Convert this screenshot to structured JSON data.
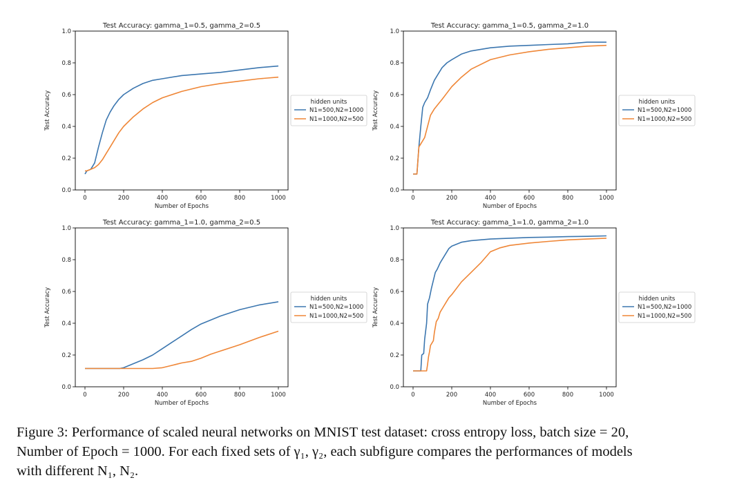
{
  "legend_title": "hidden units",
  "colors": {
    "series1": "#3b76af",
    "series2": "#ef8636"
  },
  "chart_data": [
    {
      "type": "line",
      "title": "Test Accuracy:  gamma_1=0.5, gamma_2=0.5",
      "xlabel": "Number of Epochs",
      "ylabel": "Test Accuracy",
      "xlim": [
        0,
        1000
      ],
      "ylim": [
        0,
        1.0
      ],
      "xticks": [
        0,
        200,
        400,
        600,
        800,
        1000
      ],
      "yticks": [
        "0.0",
        "0.2",
        "0.4",
        "0.6",
        "0.8",
        "1.0"
      ],
      "legend_position": "right",
      "series": [
        {
          "name": "N1=500,N2=1000",
          "x": [
            0,
            10,
            30,
            50,
            70,
            90,
            110,
            130,
            150,
            175,
            200,
            250,
            300,
            350,
            400,
            500,
            600,
            700,
            800,
            900,
            1000
          ],
          "y": [
            0.1,
            0.12,
            0.13,
            0.17,
            0.27,
            0.36,
            0.44,
            0.49,
            0.53,
            0.57,
            0.6,
            0.64,
            0.67,
            0.69,
            0.7,
            0.72,
            0.73,
            0.74,
            0.755,
            0.77,
            0.78
          ]
        },
        {
          "name": "N1=1000,N2=500",
          "x": [
            0,
            10,
            30,
            50,
            70,
            90,
            110,
            130,
            150,
            175,
            200,
            250,
            300,
            350,
            400,
            500,
            600,
            700,
            800,
            900,
            1000
          ],
          "y": [
            0.12,
            0.12,
            0.13,
            0.14,
            0.16,
            0.19,
            0.23,
            0.27,
            0.31,
            0.36,
            0.4,
            0.46,
            0.51,
            0.55,
            0.58,
            0.62,
            0.65,
            0.67,
            0.685,
            0.7,
            0.71
          ]
        }
      ]
    },
    {
      "type": "line",
      "title": "Test Accuracy:  gamma_1=0.5, gamma_2=1.0",
      "xlabel": "Number of Epochs",
      "ylabel": "Test Accuracy",
      "xlim": [
        0,
        1000
      ],
      "ylim": [
        0,
        1.0
      ],
      "xticks": [
        0,
        200,
        400,
        600,
        800,
        1000
      ],
      "yticks": [
        "0.0",
        "0.2",
        "0.4",
        "0.6",
        "0.8",
        "1.0"
      ],
      "legend_position": "right",
      "series": [
        {
          "name": "N1=500,N2=1000",
          "x": [
            0,
            20,
            30,
            40,
            50,
            60,
            75,
            90,
            110,
            130,
            150,
            175,
            200,
            250,
            300,
            400,
            500,
            600,
            700,
            800,
            900,
            1000
          ],
          "y": [
            0.1,
            0.1,
            0.27,
            0.4,
            0.52,
            0.55,
            0.58,
            0.63,
            0.69,
            0.73,
            0.77,
            0.8,
            0.82,
            0.855,
            0.875,
            0.895,
            0.905,
            0.91,
            0.915,
            0.92,
            0.93,
            0.93
          ]
        },
        {
          "name": "N1=1000,N2=500",
          "x": [
            0,
            20,
            30,
            40,
            50,
            60,
            75,
            90,
            110,
            130,
            150,
            175,
            200,
            250,
            300,
            400,
            500,
            600,
            700,
            800,
            900,
            1000
          ],
          "y": [
            0.1,
            0.1,
            0.27,
            0.29,
            0.31,
            0.33,
            0.4,
            0.47,
            0.51,
            0.54,
            0.57,
            0.61,
            0.65,
            0.71,
            0.76,
            0.82,
            0.85,
            0.87,
            0.885,
            0.895,
            0.905,
            0.91
          ]
        }
      ]
    },
    {
      "type": "line",
      "title": "Test Accuracy:  gamma_1=1.0, gamma_2=0.5",
      "xlabel": "Number of Epochs",
      "ylabel": "Test Accuracy",
      "xlim": [
        0,
        1000
      ],
      "ylim": [
        0,
        1.0
      ],
      "xticks": [
        0,
        200,
        400,
        600,
        800,
        1000
      ],
      "yticks": [
        "0.0",
        "0.2",
        "0.4",
        "0.6",
        "0.8",
        "1.0"
      ],
      "legend_position": "right",
      "series": [
        {
          "name": "N1=500,N2=1000",
          "x": [
            0,
            100,
            180,
            200,
            250,
            300,
            350,
            400,
            450,
            500,
            550,
            600,
            700,
            800,
            900,
            1000
          ],
          "y": [
            0.115,
            0.115,
            0.115,
            0.12,
            0.145,
            0.17,
            0.2,
            0.24,
            0.28,
            0.32,
            0.36,
            0.395,
            0.445,
            0.485,
            0.515,
            0.535
          ]
        },
        {
          "name": "N1=1000,N2=500",
          "x": [
            0,
            100,
            200,
            300,
            350,
            400,
            450,
            500,
            550,
            600,
            650,
            700,
            800,
            900,
            1000
          ],
          "y": [
            0.115,
            0.115,
            0.115,
            0.115,
            0.115,
            0.12,
            0.135,
            0.15,
            0.16,
            0.18,
            0.205,
            0.225,
            0.265,
            0.31,
            0.35
          ]
        }
      ]
    },
    {
      "type": "line",
      "title": "Test Accuracy:  gamma_1=1.0, gamma_2=1.0",
      "xlabel": "Number of Epochs",
      "ylabel": "Test Accuracy",
      "xlim": [
        0,
        1000
      ],
      "ylim": [
        0,
        1.0
      ],
      "xticks": [
        0,
        200,
        400,
        600,
        800,
        1000
      ],
      "yticks": [
        "0.0",
        "0.2",
        "0.4",
        "0.6",
        "0.8",
        "1.0"
      ],
      "legend_position": "right",
      "series": [
        {
          "name": "N1=500,N2=1000",
          "x": [
            0,
            40,
            45,
            55,
            60,
            65,
            70,
            75,
            85,
            95,
            105,
            115,
            125,
            140,
            155,
            170,
            185,
            200,
            250,
            300,
            400,
            500,
            600,
            700,
            800,
            900,
            1000
          ],
          "y": [
            0.1,
            0.1,
            0.2,
            0.21,
            0.3,
            0.35,
            0.4,
            0.52,
            0.56,
            0.62,
            0.67,
            0.72,
            0.74,
            0.78,
            0.81,
            0.84,
            0.87,
            0.885,
            0.91,
            0.92,
            0.93,
            0.935,
            0.94,
            0.942,
            0.945,
            0.947,
            0.95
          ]
        },
        {
          "name": "N1=1000,N2=500",
          "x": [
            0,
            70,
            75,
            80,
            85,
            90,
            95,
            100,
            105,
            110,
            120,
            130,
            140,
            155,
            170,
            185,
            200,
            250,
            300,
            350,
            400,
            450,
            500,
            600,
            700,
            800,
            900,
            1000
          ],
          "y": [
            0.1,
            0.1,
            0.14,
            0.19,
            0.22,
            0.26,
            0.27,
            0.28,
            0.29,
            0.34,
            0.41,
            0.43,
            0.47,
            0.5,
            0.53,
            0.56,
            0.58,
            0.66,
            0.72,
            0.78,
            0.85,
            0.875,
            0.89,
            0.905,
            0.915,
            0.925,
            0.93,
            0.935
          ]
        }
      ]
    }
  ],
  "caption": {
    "lines": [
      "Figure 3: Performance of scaled neural networks on MNIST test dataset: cross entropy loss, batch size = 20,",
      "Number of Epoch = 1000. For each fixed sets of γ₁, γ₂, each subfigure compares the performances of models",
      "with different N₁, N₂."
    ]
  }
}
